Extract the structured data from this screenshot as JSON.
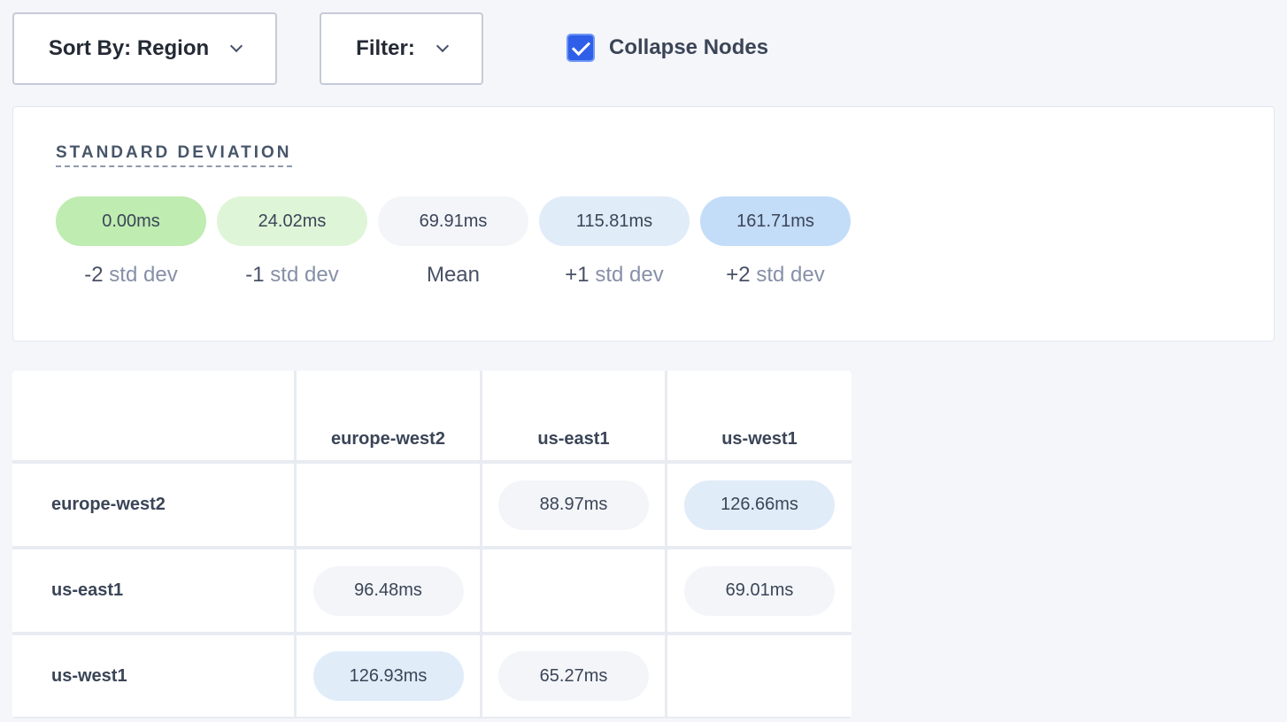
{
  "toolbar": {
    "sort_label": "Sort By: Region",
    "filter_label": "Filter:",
    "collapse_label": "Collapse Nodes",
    "collapse_checked": true
  },
  "std_dev": {
    "title": "STANDARD DEVIATION",
    "legend": [
      {
        "value": "0.00ms",
        "prefix": "-2",
        "suffix": " std dev",
        "color": "#bfecb1"
      },
      {
        "value": "24.02ms",
        "prefix": "-1",
        "suffix": " std dev",
        "color": "#dff5d8"
      },
      {
        "value": "69.91ms",
        "prefix": "Mean",
        "suffix": "",
        "color": "#f3f5f9"
      },
      {
        "value": "115.81ms",
        "prefix": "+1",
        "suffix": " std dev",
        "color": "#e1ecf9"
      },
      {
        "value": "161.71ms",
        "prefix": "+2",
        "suffix": " std dev",
        "color": "#c3dcf8"
      }
    ]
  },
  "matrix": {
    "columns": [
      "europe-west2",
      "us-east1",
      "us-west1"
    ],
    "rows": [
      {
        "label": "europe-west2",
        "cells": [
          null,
          {
            "value": "88.97ms",
            "color": "#f3f5f9"
          },
          {
            "value": "126.66ms",
            "color": "#e1ecf9"
          }
        ]
      },
      {
        "label": "us-east1",
        "cells": [
          {
            "value": "96.48ms",
            "color": "#f3f5f9"
          },
          null,
          {
            "value": "69.01ms",
            "color": "#f3f5f9"
          }
        ]
      },
      {
        "label": "us-west1",
        "cells": [
          {
            "value": "126.93ms",
            "color": "#e1ecf9"
          },
          {
            "value": "65.27ms",
            "color": "#f3f5f9"
          },
          null
        ]
      }
    ]
  }
}
